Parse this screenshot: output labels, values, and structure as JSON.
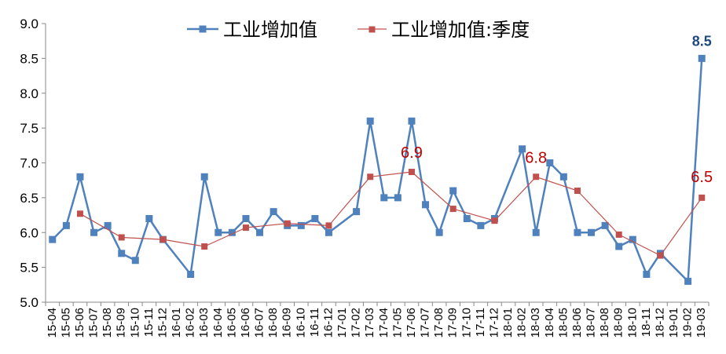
{
  "chart_data": {
    "type": "line",
    "title": "",
    "xlabel": "",
    "ylabel": "",
    "ylim": [
      5.0,
      9.0
    ],
    "yticks": [
      "5.0",
      "5.5",
      "6.0",
      "6.5",
      "7.0",
      "7.5",
      "8.0",
      "8.5",
      "9.0"
    ],
    "grid": false,
    "legend_position": "top-center",
    "x": [
      "15-04",
      "15-05",
      "15-06",
      "15-07",
      "15-08",
      "15-09",
      "15-10",
      "15-11",
      "15-12",
      "16-01",
      "16-02",
      "16-03",
      "16-04",
      "16-05",
      "16-06",
      "16-07",
      "16-08",
      "16-09",
      "16-10",
      "16-11",
      "16-12",
      "17-01",
      "17-02",
      "17-03",
      "17-04",
      "17-05",
      "17-06",
      "17-07",
      "17-08",
      "17-09",
      "17-10",
      "17-11",
      "17-12",
      "18-01",
      "18-02",
      "18-03",
      "18-04",
      "18-05",
      "18-06",
      "18-07",
      "18-08",
      "18-09",
      "18-10",
      "18-11",
      "18-12",
      "19-01",
      "19-02",
      "19-03"
    ],
    "x_tick_labels": [
      "15-04",
      "15-05",
      "15-06",
      "15-07",
      "15-08",
      "15-09",
      "15-10",
      "15-11",
      "15-12",
      "16-01",
      "16-02",
      "16-03",
      "16-04",
      "16-05",
      "16-06",
      "16-07",
      "16-08",
      "16-09",
      "16-10",
      "16-11",
      "16-12",
      "17-01",
      "17-02",
      "17-03",
      "17-04",
      "17-05",
      "17-06",
      "17-07",
      "17-08",
      "17-09",
      "17-10",
      "17-11",
      "17-12",
      "18-01",
      "18-02",
      "18-03",
      "18-04",
      "18-05",
      "18-06",
      "18-07",
      "18-08",
      "18-09",
      "18-10",
      "18-11",
      "18-12",
      "19-01",
      "19-02",
      "19-03"
    ],
    "series": [
      {
        "name": "工业增加值",
        "color": "#4F81BD",
        "marker": "square",
        "values": [
          5.9,
          6.1,
          6.8,
          6.0,
          6.1,
          5.7,
          5.6,
          6.2,
          5.9,
          null,
          5.4,
          6.8,
          6.0,
          6.0,
          6.2,
          6.0,
          6.3,
          6.1,
          6.1,
          6.2,
          6.0,
          null,
          6.3,
          7.6,
          6.5,
          6.5,
          7.6,
          6.4,
          6.0,
          6.6,
          6.2,
          6.1,
          6.2,
          null,
          7.2,
          6.0,
          7.0,
          6.8,
          6.0,
          6.0,
          6.1,
          5.8,
          5.9,
          5.4,
          5.7,
          null,
          5.3,
          8.5
        ]
      },
      {
        "name": "工业增加值:季度",
        "color": "#C0504D",
        "marker": "square",
        "values": [
          null,
          null,
          6.27,
          null,
          null,
          5.93,
          null,
          null,
          5.9,
          null,
          null,
          5.8,
          null,
          null,
          6.07,
          null,
          null,
          6.13,
          null,
          null,
          6.1,
          null,
          null,
          6.8,
          null,
          null,
          6.87,
          null,
          null,
          6.34,
          null,
          null,
          6.17,
          null,
          null,
          6.8,
          null,
          null,
          6.6,
          null,
          null,
          5.97,
          null,
          null,
          5.67,
          null,
          null,
          6.5
        ]
      }
    ],
    "data_labels": [
      {
        "series": 0,
        "x": "19-03",
        "text": "8.5"
      },
      {
        "series": 1,
        "x": "17-06",
        "text": "6.9"
      },
      {
        "series": 1,
        "x": "18-03",
        "text": "6.8"
      },
      {
        "series": 1,
        "x": "19-03",
        "text": "6.5"
      }
    ]
  }
}
